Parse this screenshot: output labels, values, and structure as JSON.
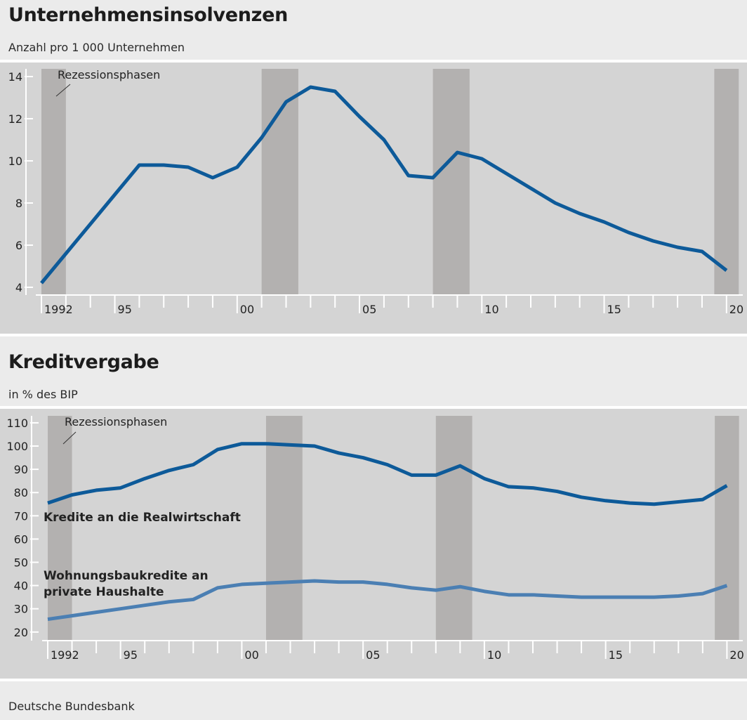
{
  "source": "Deutsche Bundesbank",
  "colors": {
    "plot_bg": "#d4d4d4",
    "recession": "#b3b1b0",
    "line_dark": "#0d5a99",
    "line_light": "#4b7fb3",
    "axis": "#ffffff",
    "text": "#222222"
  },
  "chart_data": [
    {
      "type": "line",
      "title": "Unternehmensinsolvenzen",
      "subtitle": "Anzahl pro 1 000 Unternehmen",
      "recession_label": "Rezessionsphasen",
      "x": [
        1992,
        1993,
        1994,
        1995,
        1996,
        1997,
        1998,
        1999,
        2000,
        2001,
        2002,
        2003,
        2004,
        2005,
        2006,
        2007,
        2008,
        2009,
        2010,
        2011,
        2012,
        2013,
        2014,
        2015,
        2016,
        2017,
        2018,
        2019,
        2020
      ],
      "series": [
        {
          "name": "",
          "values": [
            4.2,
            5.6,
            7.0,
            8.4,
            9.8,
            9.8,
            9.7,
            9.2,
            9.7,
            11.1,
            12.8,
            13.5,
            13.3,
            12.1,
            11.0,
            9.3,
            9.2,
            10.4,
            10.1,
            9.4,
            8.7,
            8.0,
            7.5,
            7.1,
            6.6,
            6.2,
            5.9,
            5.7,
            4.8
          ]
        }
      ],
      "ylim": [
        3.6,
        14.5
      ],
      "yticks": [
        4,
        6,
        8,
        10,
        12,
        14
      ],
      "xticks": [
        {
          "value": 1992,
          "label": "1992"
        },
        {
          "value": 1995,
          "label": "95"
        },
        {
          "value": 2000,
          "label": "00"
        },
        {
          "value": 2005,
          "label": "05"
        },
        {
          "value": 2010,
          "label": "10"
        },
        {
          "value": 2015,
          "label": "15"
        },
        {
          "value": 2020,
          "label": "20"
        }
      ],
      "recessions": [
        [
          1992,
          1993
        ],
        [
          2001,
          2002.5
        ],
        [
          2008,
          2009.5
        ],
        [
          2019.5,
          2020.5
        ]
      ]
    },
    {
      "type": "line",
      "title": "Kreditvergabe",
      "subtitle": "in % des BIP",
      "recession_label": "Rezessionsphasen",
      "x": [
        1992,
        1993,
        1994,
        1995,
        1996,
        1997,
        1998,
        1999,
        2000,
        2001,
        2002,
        2003,
        2004,
        2005,
        2006,
        2007,
        2008,
        2009,
        2010,
        2011,
        2012,
        2013,
        2014,
        2015,
        2016,
        2017,
        2018,
        2019,
        2020
      ],
      "series": [
        {
          "name": "Kredite an die Realwirtschaft",
          "values": [
            75.5,
            79,
            81,
            82,
            86,
            89.5,
            92,
            98.5,
            101,
            101,
            100.5,
            100,
            97,
            95,
            92,
            87.5,
            87.5,
            91.5,
            86,
            82.5,
            82,
            80.5,
            78,
            76.5,
            75.5,
            75,
            76,
            77,
            83
          ]
        },
        {
          "name": "Wohnungsbaukredite an private Haushalte",
          "values": [
            25.5,
            27,
            28.5,
            30,
            31.5,
            33,
            34,
            39,
            40.5,
            41,
            41.5,
            42,
            41.5,
            41.5,
            40.5,
            39,
            38,
            39.5,
            37.5,
            36,
            36,
            35.5,
            35,
            35,
            35,
            35,
            35.5,
            36.5,
            40
          ]
        }
      ],
      "series_labels": [
        "Kredite an die Realwirtschaft",
        "Wohnungsbaukredite an",
        "private Haushalte"
      ],
      "ylim": [
        16,
        113
      ],
      "yticks": [
        20,
        30,
        40,
        50,
        60,
        70,
        80,
        90,
        100,
        110
      ],
      "xticks": [
        {
          "value": 1992,
          "label": "1992"
        },
        {
          "value": 1995,
          "label": "95"
        },
        {
          "value": 2000,
          "label": "00"
        },
        {
          "value": 2005,
          "label": "05"
        },
        {
          "value": 2010,
          "label": "10"
        },
        {
          "value": 2015,
          "label": "15"
        },
        {
          "value": 2020,
          "label": "20"
        }
      ],
      "recessions": [
        [
          1992,
          1993
        ],
        [
          2001,
          2002.5
        ],
        [
          2008,
          2009.5
        ],
        [
          2019.5,
          2020.5
        ]
      ]
    }
  ]
}
